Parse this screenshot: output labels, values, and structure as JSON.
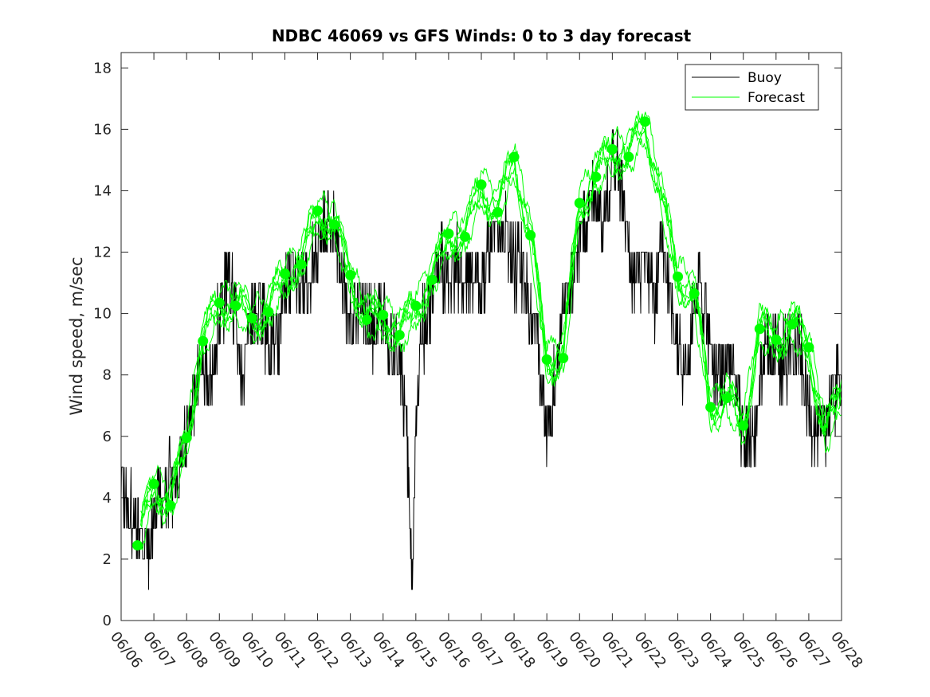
{
  "chart_data": {
    "type": "line",
    "title": "NDBC 46069 vs GFS Winds: 0 to 3 day forecast",
    "xlabel": "",
    "ylabel": "Wind speed, m/sec",
    "xlim": [
      0,
      22
    ],
    "ylim": [
      0,
      18.5
    ],
    "x_tick_labels": [
      "06/06",
      "06/07",
      "06/08",
      "06/09",
      "06/10",
      "06/11",
      "06/12",
      "06/13",
      "06/14",
      "06/15",
      "06/16",
      "06/17",
      "06/18",
      "06/19",
      "06/20",
      "06/21",
      "06/22",
      "06/23",
      "06/24",
      "06/25",
      "06/26",
      "06/27",
      "06/28"
    ],
    "y_ticks": [
      0,
      2,
      4,
      6,
      8,
      10,
      12,
      14,
      16,
      18
    ],
    "legend": {
      "position": "top-right",
      "entries": [
        "Buoy",
        "Forecast"
      ]
    },
    "colors": {
      "buoy": "#000000",
      "forecast": "#00ff00",
      "axes": "#262626"
    },
    "buoy_profile": {
      "x": [
        0,
        0.3,
        0.5,
        0.7,
        0.9,
        1.0,
        1.2,
        1.5,
        1.8,
        2.0,
        2.3,
        2.5,
        2.7,
        3.0,
        3.3,
        3.5,
        3.7,
        4.0,
        4.3,
        4.5,
        4.7,
        5.0,
        5.3,
        5.5,
        5.7,
        6.0,
        6.3,
        6.5,
        6.8,
        7.0,
        7.3,
        7.5,
        7.7,
        8.0,
        8.3,
        8.5,
        8.7,
        8.8,
        8.9,
        9.0,
        9.2,
        9.5,
        9.7,
        10.0,
        10.3,
        10.5,
        10.7,
        11.0,
        11.3,
        11.5,
        11.7,
        12.0,
        12.3,
        12.5,
        12.7,
        12.85,
        13.0,
        13.3,
        13.5,
        13.7,
        14.0,
        14.3,
        14.5,
        14.7,
        14.9,
        15.0,
        15.3,
        15.5,
        15.7,
        16.0,
        16.3,
        16.5,
        16.7,
        17.0,
        17.3,
        17.5,
        17.7,
        18.0,
        18.3,
        18.5,
        18.7,
        19.0,
        19.3,
        19.5,
        19.7,
        20.0,
        20.3,
        20.5,
        20.7,
        21.0,
        21.3,
        21.5,
        22.0
      ],
      "y": [
        4.5,
        3.5,
        3.0,
        2.5,
        2.0,
        3.5,
        4.5,
        4.5,
        4.5,
        6.0,
        8.0,
        8.5,
        8.0,
        10.0,
        11.5,
        10.0,
        8.0,
        10.0,
        10.0,
        9.0,
        8.5,
        11.0,
        11.5,
        11.0,
        10.5,
        12.5,
        13.0,
        12.5,
        11.0,
        9.5,
        10.5,
        10.0,
        9.5,
        10.0,
        9.0,
        8.5,
        6.5,
        4.0,
        1.0,
        7.0,
        9.5,
        10.5,
        11.5,
        11.0,
        11.5,
        11.5,
        11.0,
        11.0,
        12.0,
        12.5,
        12.5,
        11.5,
        11.5,
        10.0,
        9.0,
        8.0,
        6.0,
        8.0,
        10.0,
        11.0,
        12.5,
        13.5,
        14.0,
        13.0,
        14.0,
        15.5,
        14.0,
        12.0,
        11.0,
        11.5,
        10.5,
        12.0,
        11.0,
        9.0,
        8.0,
        10.5,
        11.0,
        8.5,
        8.0,
        8.5,
        8.0,
        6.0,
        5.5,
        7.5,
        9.0,
        8.5,
        8.5,
        9.0,
        9.0,
        7.0,
        6.0,
        6.5,
        8.0
      ]
    },
    "forecast_points": {
      "x": [
        0.5,
        1.0,
        1.5,
        2.0,
        2.5,
        3.0,
        3.5,
        4.0,
        4.5,
        5.0,
        5.5,
        6.0,
        6.5,
        7.0,
        7.5,
        8.0,
        8.5,
        9.0,
        9.5,
        10.0,
        10.5,
        11.0,
        11.5,
        12.0,
        12.5,
        13.0,
        13.5,
        14.0,
        14.5,
        15.0,
        15.5,
        16.0,
        17.0,
        17.5,
        18.0,
        18.5,
        19.0,
        19.5,
        20.0,
        20.5,
        21.0
      ],
      "y": [
        2.45,
        4.45,
        3.75,
        5.95,
        9.1,
        10.35,
        10.25,
        9.85,
        10.05,
        11.3,
        11.6,
        13.35,
        12.9,
        11.25,
        9.8,
        9.95,
        9.3,
        10.25,
        11.1,
        12.6,
        12.5,
        14.2,
        13.3,
        15.1,
        12.55,
        8.5,
        8.55,
        13.6,
        14.45,
        15.35,
        15.1,
        16.25,
        11.2,
        10.65,
        6.95,
        7.25,
        6.35,
        9.5,
        9.15,
        9.65,
        8.9
      ]
    }
  }
}
